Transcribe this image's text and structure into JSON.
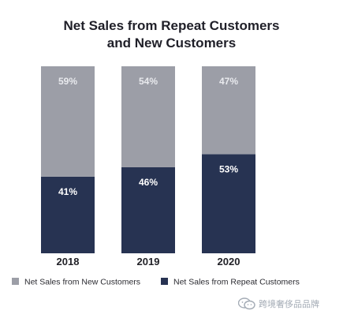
{
  "chart_data": {
    "type": "bar",
    "stacked": true,
    "title": "Net Sales from Repeat Customers and New Customers",
    "title_lines": [
      "Net Sales from Repeat Customers",
      "and New Customers"
    ],
    "categories": [
      "2018",
      "2019",
      "2020"
    ],
    "series": [
      {
        "name": "Net Sales from Repeat Customers",
        "values": [
          41,
          46,
          53
        ],
        "labels": [
          "41%",
          "46%",
          "53%"
        ],
        "color": "#273352"
      },
      {
        "name": "Net Sales from New Customers",
        "values": [
          59,
          54,
          47
        ],
        "labels": [
          "59%",
          "54%",
          "47%"
        ],
        "color": "#9c9ea7"
      }
    ],
    "ylim": [
      0,
      100
    ],
    "xlabel": "",
    "ylabel": "",
    "grid": false,
    "legend_position": "bottom"
  },
  "watermark": {
    "text": "跨境奢侈品品牌",
    "icon": "wechat-icon"
  }
}
